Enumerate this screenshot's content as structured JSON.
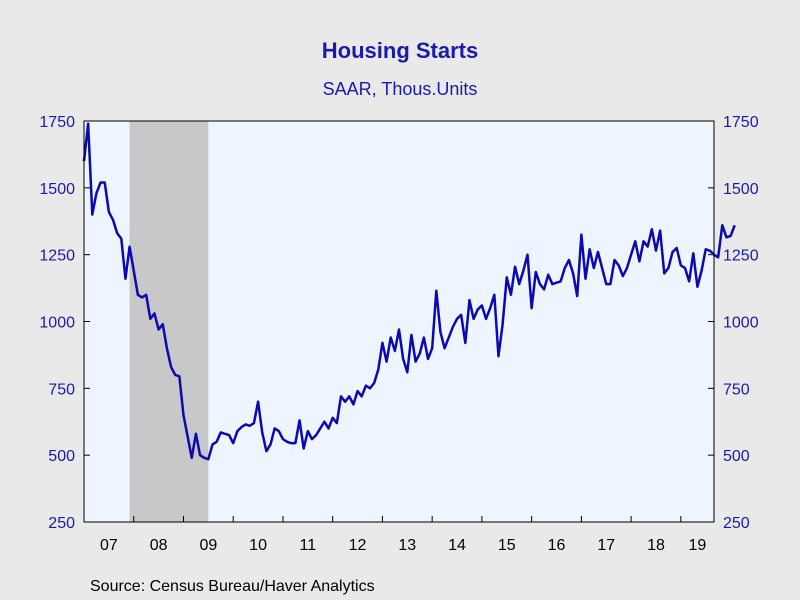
{
  "title": "Housing Starts",
  "subtitle": "SAAR, Thous.Units",
  "source": "Source:  Census Bureau/Haver Analytics",
  "colors": {
    "line": "#0a0ab4",
    "plot_bg": "#eef5ff",
    "recession": "#c8c8c8",
    "page_bg": "#e9e9e9",
    "axis_text": "#1a1ab0"
  },
  "chart_data": {
    "type": "line",
    "title": "Housing Starts",
    "subtitle": "SAAR, Thous.Units",
    "xlabel": "",
    "ylabel": "",
    "ylim": [
      250,
      1750
    ],
    "yticks": [
      250,
      500,
      750,
      1000,
      1250,
      1500,
      1750
    ],
    "secondary_y_axis": true,
    "x_start": "2007-01",
    "x_end": "2019-08",
    "x_tick_labels": [
      "07",
      "08",
      "09",
      "10",
      "11",
      "12",
      "13",
      "14",
      "15",
      "16",
      "17",
      "18",
      "19"
    ],
    "grid": false,
    "recession_shading": {
      "start": "2007-12",
      "end": "2009-06"
    },
    "series": [
      {
        "values": [
          1600,
          1740,
          1400,
          1480,
          1520,
          1520,
          1410,
          1380,
          1330,
          1310,
          1160,
          1280,
          1190,
          1100,
          1090,
          1100,
          1010,
          1030,
          970,
          990,
          900,
          830,
          800,
          795,
          650,
          570,
          490,
          580,
          500,
          490,
          485,
          540,
          550,
          585,
          580,
          575,
          545,
          590,
          605,
          615,
          610,
          620,
          700,
          585,
          515,
          540,
          600,
          590,
          560,
          550,
          545,
          545,
          630,
          525,
          590,
          560,
          575,
          600,
          625,
          600,
          640,
          620,
          720,
          700,
          720,
          690,
          740,
          720,
          760,
          750,
          770,
          820,
          920,
          850,
          940,
          890,
          970,
          860,
          810,
          950,
          850,
          880,
          940,
          860,
          900,
          1115,
          960,
          900,
          940,
          980,
          1010,
          1025,
          920,
          1080,
          1010,
          1045,
          1060,
          1010,
          1050,
          1100,
          870,
          990,
          1165,
          1100,
          1205,
          1140,
          1190,
          1250,
          1050,
          1185,
          1140,
          1120,
          1175,
          1140,
          1145,
          1150,
          1200,
          1230,
          1180,
          1095,
          1325,
          1160,
          1270,
          1200,
          1260,
          1200,
          1140,
          1140,
          1230,
          1210,
          1170,
          1200,
          1250,
          1300,
          1225,
          1300,
          1280,
          1345,
          1265,
          1340,
          1180,
          1200,
          1260,
          1275,
          1210,
          1200,
          1150,
          1255,
          1130,
          1190,
          1270,
          1265,
          1250,
          1240,
          1360,
          1315,
          1320,
          1360
        ]
      }
    ]
  }
}
